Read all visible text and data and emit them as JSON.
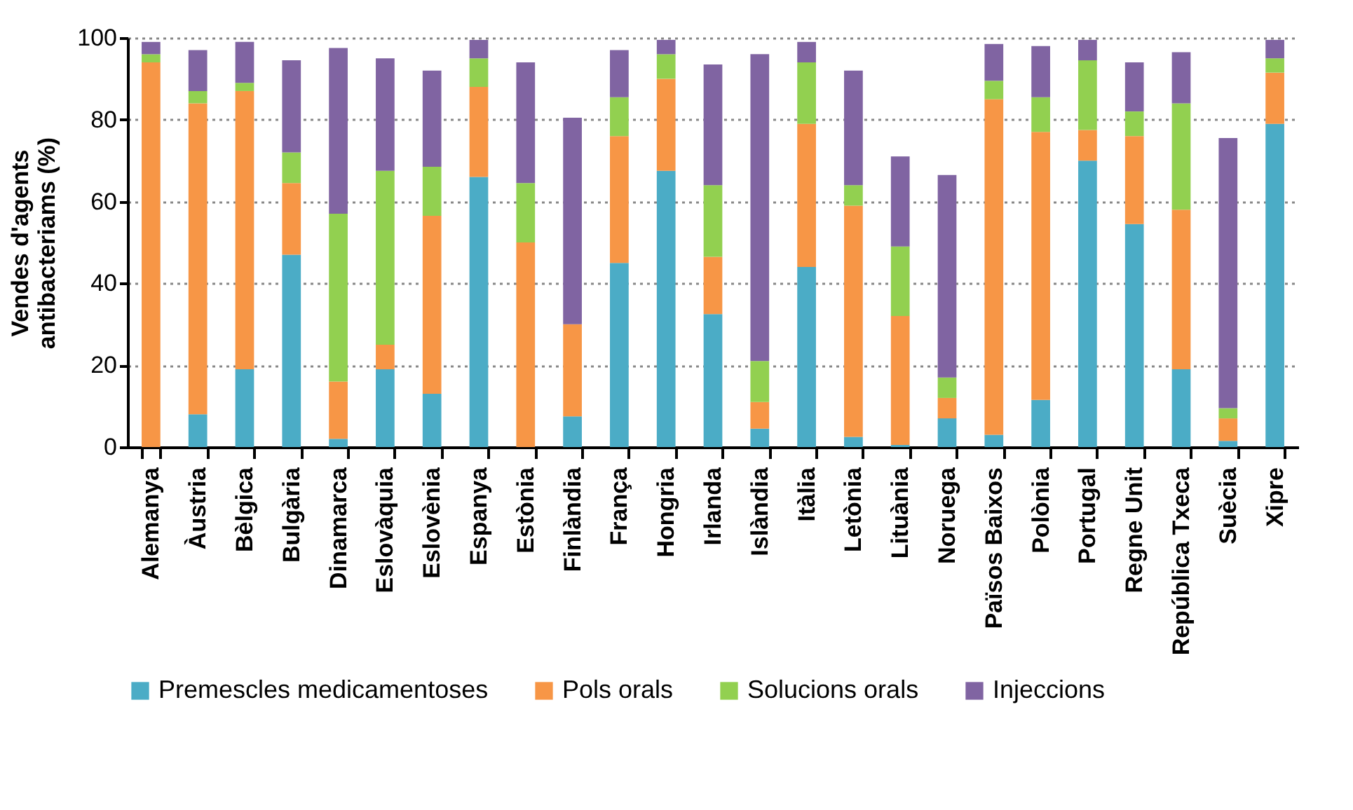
{
  "chart_data": {
    "type": "bar",
    "stacked": true,
    "ylabel": "Vendes d'agents antibacteriams (%)",
    "categories": [
      "Alemanya",
      "Àustria",
      "Bèlgica",
      "Bulgària",
      "Dinamarca",
      "Eslovàquia",
      "Eslovènia",
      "Espanya",
      "Estònia",
      "Finlàndia",
      "França",
      "Hongria",
      "Irlanda",
      "Islàndia",
      "Itàlia",
      "Letònia",
      "Lituània",
      "Noruega",
      "Països Baixos",
      "Polònia",
      "Portugal",
      "Regne Unit",
      "República Txeca",
      "Suècia",
      "Xipre"
    ],
    "series": [
      {
        "name": "Premescles medicamentoses",
        "color": "#4bacc6",
        "values": [
          0,
          8,
          19,
          47,
          2,
          19,
          13,
          66,
          0,
          7.5,
          45,
          67.5,
          32.5,
          4.5,
          44,
          2.5,
          0.5,
          7,
          3,
          11.5,
          70,
          54.5,
          19,
          1.5,
          79
        ]
      },
      {
        "name": "Pols orals",
        "color": "#f79646",
        "values": [
          94,
          76,
          68,
          17.5,
          14,
          6,
          43.5,
          22,
          50,
          22.5,
          31,
          22.5,
          14,
          6.5,
          35,
          56.5,
          31.5,
          5,
          82,
          65.5,
          7.5,
          21.5,
          39,
          5.5,
          12.5
        ]
      },
      {
        "name": "Solucions orals",
        "color": "#92d050",
        "values": [
          2,
          3,
          2,
          7.5,
          41,
          42.5,
          12,
          7,
          14.5,
          0,
          9.5,
          6,
          17.5,
          10,
          15,
          5,
          17,
          5,
          4.5,
          8.5,
          17,
          6,
          26,
          2.5,
          3.5
        ]
      },
      {
        "name": "Injeccions",
        "color": "#8064a2",
        "values": [
          3,
          10,
          10,
          22.5,
          40.5,
          27.5,
          23.5,
          4.5,
          29.5,
          50.5,
          11.5,
          3.5,
          29.5,
          75,
          5,
          28,
          22,
          49.5,
          9,
          12.5,
          5,
          12,
          12.5,
          66,
          4.5
        ]
      }
    ],
    "ylim": [
      0,
      100
    ],
    "yticks": [
      0,
      20,
      40,
      60,
      80,
      100
    ],
    "grid": "y",
    "legend": "bottom"
  }
}
